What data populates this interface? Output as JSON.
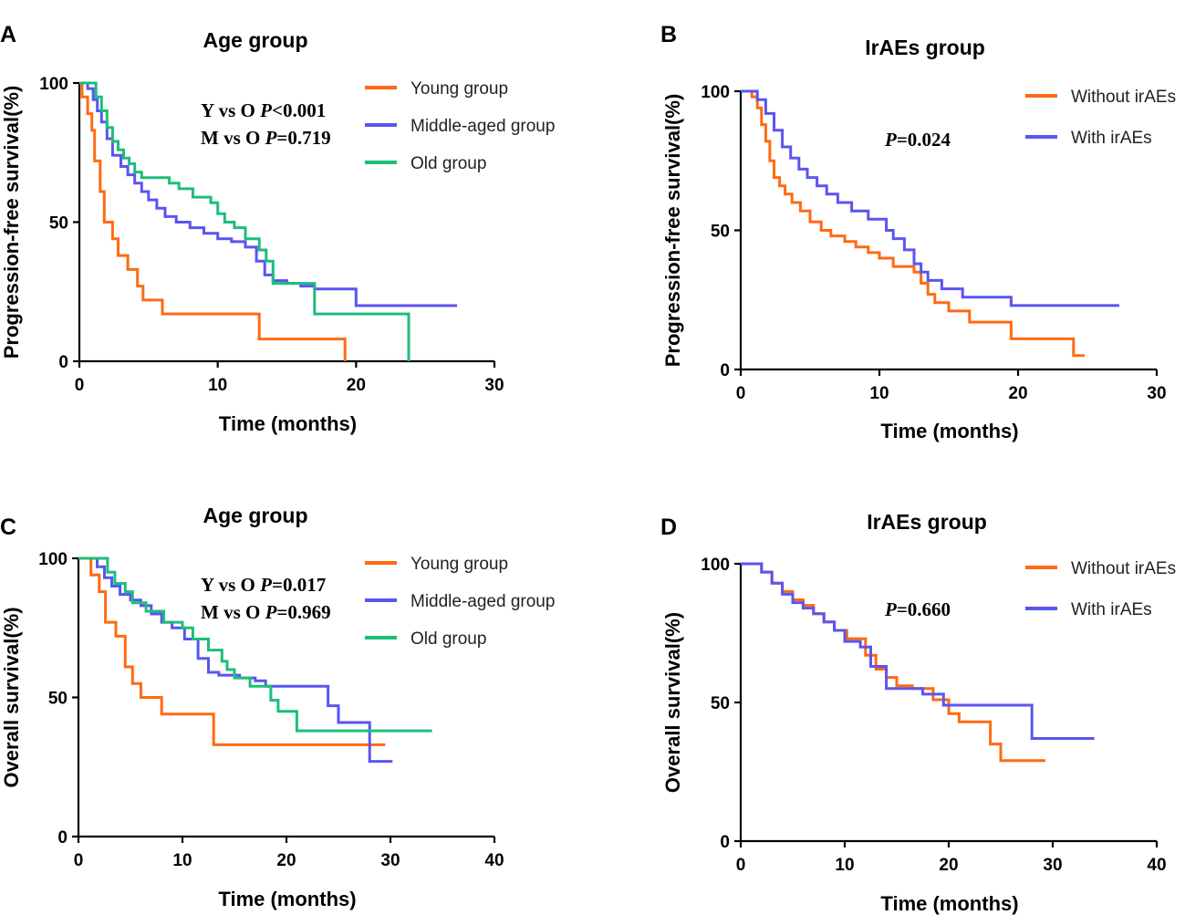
{
  "figure": {
    "panel_letters": [
      "A",
      "B",
      "C",
      "D"
    ]
  },
  "chart_data": [
    {
      "panel": "A",
      "type": "line",
      "step": true,
      "title": "Age group",
      "xlabel": "Time (months)",
      "ylabel": "Progression-free survival(%)",
      "xlim": [
        0,
        30
      ],
      "ylim": [
        0,
        100
      ],
      "xticks": [
        0,
        10,
        20,
        30
      ],
      "yticks": [
        0,
        50,
        100
      ],
      "legend": "top-right",
      "annotations": [
        {
          "prefix": "Y vs O ",
          "p": "P",
          "value": "<0.001"
        },
        {
          "prefix": "M vs O ",
          "p": "P",
          "value": "=0.719"
        }
      ],
      "series": [
        {
          "name": "Young group",
          "color": "#FF6A13",
          "x": [
            0,
            0.2,
            0.6,
            0.9,
            1.1,
            1.5,
            1.8,
            2.4,
            2.8,
            3.5,
            4.2,
            4.6,
            5.2,
            6.0,
            13.0,
            19.2,
            19.2
          ],
          "y": [
            100,
            95,
            89,
            83,
            72,
            61,
            50,
            44,
            38,
            33,
            27,
            22,
            22,
            17,
            8,
            8,
            0
          ]
        },
        {
          "name": "Middle-aged group",
          "color": "#5A55F0",
          "x": [
            0,
            0.6,
            1.0,
            1.3,
            1.6,
            2.0,
            2.4,
            3.0,
            3.5,
            4.0,
            4.5,
            5.0,
            5.6,
            6.2,
            7.0,
            8.0,
            9.0,
            10.0,
            11.0,
            12.0,
            12.8,
            13.4,
            14.0,
            15.0,
            16.0,
            17.0,
            20.0,
            27.3
          ],
          "y": [
            100,
            98,
            94,
            90,
            86,
            80,
            74,
            70,
            67,
            64,
            61,
            58,
            55,
            52,
            50,
            48,
            46,
            44,
            43,
            41,
            36,
            31,
            29,
            28,
            27,
            26,
            20,
            20
          ]
        },
        {
          "name": "Old group",
          "color": "#1DBE7A",
          "x": [
            0,
            1.2,
            1.6,
            2.0,
            2.4,
            2.8,
            3.2,
            3.6,
            4.0,
            4.5,
            5.0,
            6.5,
            7.2,
            8.2,
            9.5,
            10.0,
            10.5,
            11.2,
            12.0,
            13.0,
            13.5,
            14.0,
            16.8,
            17.0,
            23.8,
            23.8
          ],
          "y": [
            100,
            95,
            90,
            84,
            79,
            76,
            73,
            71,
            68,
            66,
            66,
            64,
            62,
            59,
            57,
            53,
            50,
            48,
            44,
            40,
            36,
            28,
            28,
            17,
            17,
            0
          ]
        }
      ]
    },
    {
      "panel": "B",
      "type": "line",
      "step": true,
      "title": "IrAEs group",
      "xlabel": "Time (months)",
      "ylabel": "Progression-free survival(%)",
      "xlim": [
        0,
        30
      ],
      "ylim": [
        0,
        100
      ],
      "xticks": [
        0,
        10,
        20,
        30
      ],
      "yticks": [
        0,
        50,
        100
      ],
      "legend": "top-right",
      "annotations": [
        {
          "prefix": "",
          "p": "P",
          "value": "=0.024"
        }
      ],
      "series": [
        {
          "name": "Without irAEs",
          "color": "#FF6A13",
          "x": [
            0,
            0.8,
            1.2,
            1.5,
            1.8,
            2.1,
            2.4,
            2.8,
            3.2,
            3.7,
            4.3,
            5.0,
            5.8,
            6.5,
            7.5,
            8.3,
            9.2,
            10.0,
            11.0,
            12.5,
            13.0,
            13.5,
            14.0,
            15.0,
            16.5,
            19.5,
            24.0,
            24.8
          ],
          "y": [
            100,
            98,
            94,
            88,
            82,
            75,
            69,
            66,
            63,
            60,
            57,
            53,
            50,
            48,
            46,
            44,
            42,
            40,
            37,
            35,
            31,
            27,
            24,
            21,
            17,
            11,
            5,
            5
          ]
        },
        {
          "name": "With irAEs",
          "color": "#5A55F0",
          "x": [
            0,
            1.2,
            1.8,
            2.4,
            3.0,
            3.6,
            4.2,
            4.8,
            5.5,
            6.2,
            7.0,
            8.0,
            9.2,
            10.5,
            11.0,
            11.8,
            12.5,
            13.0,
            13.5,
            14.5,
            16.0,
            19.5,
            27.3
          ],
          "y": [
            100,
            97,
            92,
            86,
            80,
            76,
            72,
            69,
            66,
            63,
            60,
            57,
            54,
            50,
            47,
            43,
            38,
            35,
            32,
            29,
            26,
            23,
            23
          ]
        }
      ]
    },
    {
      "panel": "C",
      "type": "line",
      "step": true,
      "title": "Age group",
      "xlabel": "Time (months)",
      "ylabel": "Overall survival(%)",
      "xlim": [
        0,
        40
      ],
      "ylim": [
        0,
        100
      ],
      "xticks": [
        0,
        10,
        20,
        30,
        40
      ],
      "yticks": [
        0,
        50,
        100
      ],
      "legend": "top-right",
      "annotations": [
        {
          "prefix": "Y vs O ",
          "p": "P",
          "value": "=0.017"
        },
        {
          "prefix": "M vs O ",
          "p": "P",
          "value": "=0.969"
        }
      ],
      "series": [
        {
          "name": "Young group",
          "color": "#FF6A13",
          "x": [
            0,
            1.2,
            2.0,
            2.6,
            3.6,
            4.5,
            5.2,
            6.0,
            8.0,
            13.0,
            29.5
          ],
          "y": [
            100,
            94,
            88,
            77,
            72,
            61,
            55,
            50,
            44,
            33,
            33
          ]
        },
        {
          "name": "Middle-aged group",
          "color": "#5A55F0",
          "x": [
            0,
            1.8,
            2.5,
            3.2,
            4.0,
            5.0,
            6.0,
            7.0,
            8.0,
            9.0,
            10.2,
            11.5,
            12.5,
            13.5,
            15.5,
            17.0,
            18.0,
            24.0,
            25.0,
            28.0,
            30.2
          ],
          "y": [
            100,
            97,
            93,
            90,
            87,
            85,
            83,
            80,
            77,
            75,
            71,
            64,
            59,
            58,
            57,
            56,
            54,
            47,
            41,
            27,
            27
          ]
        },
        {
          "name": "Old group",
          "color": "#1DBE7A",
          "x": [
            0,
            2.8,
            3.5,
            4.5,
            5.2,
            6.5,
            8.2,
            10.0,
            11.0,
            12.5,
            13.8,
            14.3,
            15.0,
            16.5,
            18.5,
            19.2,
            21.0,
            34.0
          ],
          "y": [
            100,
            95,
            91,
            88,
            84,
            81,
            77,
            75,
            71,
            67,
            63,
            60,
            57,
            54,
            49,
            45,
            38,
            38
          ]
        }
      ]
    },
    {
      "panel": "D",
      "type": "line",
      "step": true,
      "title": "IrAEs group",
      "xlabel": "Time (months)",
      "ylabel": "Overall survival(%)",
      "xlim": [
        0,
        40
      ],
      "ylim": [
        0,
        100
      ],
      "xticks": [
        0,
        10,
        20,
        30,
        40
      ],
      "yticks": [
        0,
        50,
        100
      ],
      "legend": "top-right",
      "annotations": [
        {
          "prefix": "",
          "p": "P",
          "value": "=0.660"
        }
      ],
      "series": [
        {
          "name": "Without irAEs",
          "color": "#FF6A13",
          "x": [
            0,
            2.0,
            3.0,
            4.0,
            5.0,
            6.0,
            7.0,
            8.0,
            9.0,
            10.2,
            11.5,
            12.0,
            13.0,
            14.0,
            15.0,
            16.5,
            18.5,
            20.0,
            21.0,
            24.0,
            25.0,
            29.3
          ],
          "y": [
            100,
            97,
            93,
            90,
            87,
            85,
            82,
            79,
            76,
            73,
            73,
            67,
            62,
            59,
            56,
            55,
            51,
            46,
            43,
            35,
            29,
            29
          ]
        },
        {
          "name": "With irAEs",
          "color": "#5A55F0",
          "x": [
            0,
            2.0,
            3.0,
            4.0,
            5.0,
            6.0,
            7.0,
            8.0,
            9.0,
            10.0,
            11.5,
            12.5,
            14.0,
            17.5,
            19.5,
            28.0,
            34.0
          ],
          "y": [
            100,
            97,
            93,
            89,
            86,
            84,
            82,
            79,
            76,
            72,
            70,
            63,
            55,
            53,
            49,
            37,
            37
          ]
        }
      ]
    }
  ]
}
